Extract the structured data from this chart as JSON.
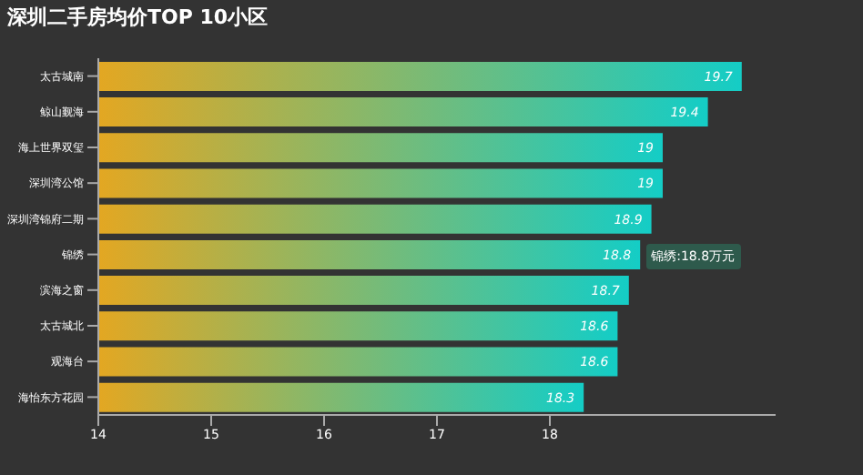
{
  "chart_data": {
    "type": "bar",
    "orientation": "horizontal",
    "title": "深圳二手房均价TOP 10小区",
    "categories": [
      "太古城南",
      "鲸山觐海",
      "海上世界双玺",
      "深圳湾公馆",
      "深圳湾锦府二期",
      "锦绣",
      "滨海之窗",
      "太古城北",
      "观海台",
      "海怡东方花园"
    ],
    "series": [
      {
        "color": "#14cdc6",
        "values": [
          19.7,
          19.4,
          19,
          19,
          18.9,
          18.8,
          18.7,
          18.6,
          18.6,
          18.3
        ]
      }
    ],
    "xlim": [
      14,
      20
    ],
    "xticks": [
      14,
      15,
      16,
      17,
      18
    ],
    "data_labels": true,
    "annotations": [
      {
        "text": "锦绣:18.8万元",
        "x": 18.8,
        "y": "锦绣"
      }
    ]
  }
}
